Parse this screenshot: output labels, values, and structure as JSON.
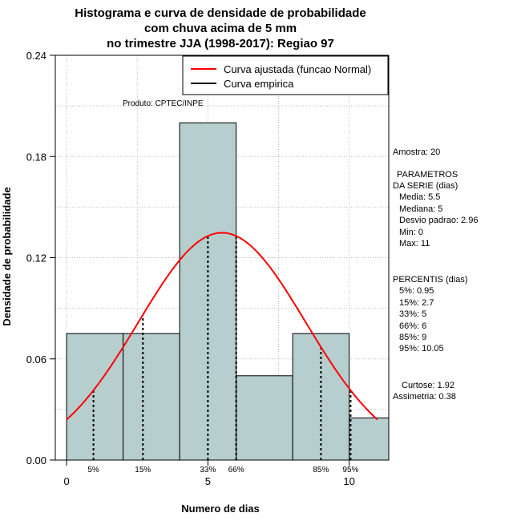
{
  "chart_data": {
    "type": "bar",
    "title_lines": [
      "Histograma e curva de densidade de probabilidade",
      "com chuva acima de 5 mm",
      "no trimestre JJA (1998-2017): Regiao 97"
    ],
    "xlabel": "Numero de dias",
    "ylabel": "Densidade de probabilidade",
    "xlim": [
      -0.4,
      11.4
    ],
    "ylim": [
      0,
      0.24
    ],
    "x_ticks": [
      0,
      5,
      10
    ],
    "y_ticks": [
      "0.00",
      "0.06",
      "0.12",
      "0.18",
      "0.24"
    ],
    "grid": true,
    "bins": [
      {
        "from": 0,
        "to": 2,
        "density": 0.075
      },
      {
        "from": 2,
        "to": 4,
        "density": 0.075
      },
      {
        "from": 4,
        "to": 6,
        "density": 0.2
      },
      {
        "from": 6,
        "to": 8,
        "density": 0.05
      },
      {
        "from": 8,
        "to": 10,
        "density": 0.075
      },
      {
        "from": 10,
        "to": 11.4,
        "density": 0.025
      }
    ],
    "bar_color": "#b6cece",
    "normal_curve": {
      "mean": 5.5,
      "sd": 2.96,
      "x_from": 0,
      "x_to": 11,
      "color": "#ff0000"
    },
    "percentile_lines": [
      {
        "label": "5%",
        "value": 0.95
      },
      {
        "label": "15%",
        "value": 2.7
      },
      {
        "label": "33%",
        "value": 5
      },
      {
        "label": "66%",
        "value": 6
      },
      {
        "label": "85%",
        "value": 9
      },
      {
        "label": "95%",
        "value": 10.05
      }
    ],
    "legend": {
      "position": "top-right",
      "items": [
        {
          "label": "Curva ajustada (funcao Normal)",
          "color": "#ff0000"
        },
        {
          "label": "Curva empirica",
          "color": "#000000"
        }
      ]
    },
    "annotation": "Produto: CPTEC/INPE"
  },
  "stats": {
    "amostra": "Amostra: 20",
    "params_title_1": "PARAMETROS",
    "params_title_2": "DA SERIE (dias)",
    "params": [
      "Media: 5.5",
      "Mediana: 5",
      "Desvio padrao: 2.96",
      "Min: 0",
      "Max: 11"
    ],
    "percentis_title": "PERCENTIS (dias)",
    "percentis": [
      "5%: 0.95",
      "15%: 2.7",
      "33%: 5",
      "66%: 6",
      "85%: 9",
      "95%: 10.05"
    ],
    "curtose": "Curtose: 1.92",
    "assimetria": "Assimetria: 0.38"
  }
}
